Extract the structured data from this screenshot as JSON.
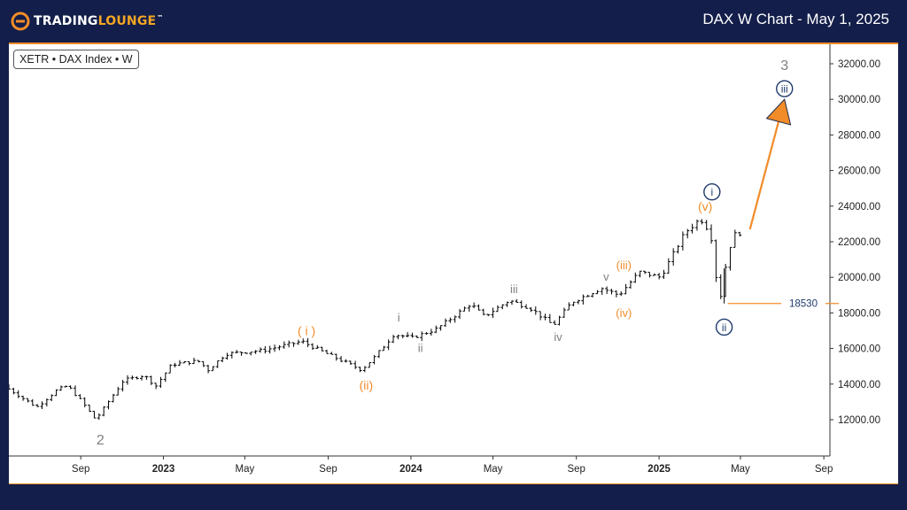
{
  "header": {
    "brand_a": "TRADING",
    "brand_b": "LOUNGE",
    "brand_tm": "™",
    "chart_title": "DAX W Chart - May 1, 2025"
  },
  "symbol": "XETR • DAX Index • W",
  "colors": {
    "background": "#131e4a",
    "accent": "#f28c28",
    "wave_blue": "#1f3a6e",
    "wave_gray": "#808080",
    "bar": "#000000"
  },
  "chart_data": {
    "type": "ohlc",
    "title": "DAX W Chart - May 1, 2025",
    "xlabel": "",
    "ylabel": "",
    "ylim": [
      10000,
      33000
    ],
    "y_ticks": [
      12000,
      14000,
      16000,
      18000,
      20000,
      22000,
      24000,
      26000,
      28000,
      30000,
      32000
    ],
    "y_tick_labels": [
      "12000.00",
      "14000.00",
      "16000.00",
      "18000.00",
      "20000.00",
      "22000.00",
      "24000.00",
      "26000.00",
      "28000.00",
      "30000.00",
      "32000.00"
    ],
    "x_ticks": [
      {
        "label": "Sep",
        "date": "2022-09-01",
        "bold": false
      },
      {
        "label": "2023",
        "date": "2023-01-01",
        "bold": true
      },
      {
        "label": "May",
        "date": "2023-05-01",
        "bold": false
      },
      {
        "label": "Sep",
        "date": "2023-09-01",
        "bold": false
      },
      {
        "label": "2024",
        "date": "2024-01-01",
        "bold": true
      },
      {
        "label": "May",
        "date": "2024-05-01",
        "bold": false
      },
      {
        "label": "Sep",
        "date": "2024-09-01",
        "bold": false
      },
      {
        "label": "2025",
        "date": "2025-01-01",
        "bold": true
      },
      {
        "label": "May",
        "date": "2025-05-01",
        "bold": false
      },
      {
        "label": "Sep",
        "date": "2025-09-01",
        "bold": false
      }
    ],
    "x_range": [
      "2022-05-18",
      "2025-09-10"
    ],
    "price_path": [
      [
        "2022-05-18",
        13900
      ],
      [
        "2022-06-15",
        13200
      ],
      [
        "2022-07-05",
        12700
      ],
      [
        "2022-08-05",
        13700
      ],
      [
        "2022-08-20",
        13900
      ],
      [
        "2022-09-10",
        13000
      ],
      [
        "2022-09-30",
        12000
      ],
      [
        "2022-10-15",
        12800
      ],
      [
        "2022-11-10",
        14200
      ],
      [
        "2022-12-10",
        14500
      ],
      [
        "2022-12-28",
        13900
      ],
      [
        "2023-01-20",
        15100
      ],
      [
        "2023-02-28",
        15300
      ],
      [
        "2023-03-15",
        14800
      ],
      [
        "2023-04-10",
        15700
      ],
      [
        "2023-06-05",
        15900
      ],
      [
        "2023-07-31",
        16400
      ],
      [
        "2023-09-01",
        15800
      ],
      [
        "2023-10-27",
        14800
      ],
      [
        "2023-11-15",
        15500
      ],
      [
        "2023-12-14",
        16800
      ],
      [
        "2024-01-10",
        16600
      ],
      [
        "2024-02-15",
        17100
      ],
      [
        "2024-04-05",
        18500
      ],
      [
        "2024-04-25",
        17800
      ],
      [
        "2024-06-01",
        18700
      ],
      [
        "2024-07-01",
        18300
      ],
      [
        "2024-08-05",
        17300
      ],
      [
        "2024-09-01",
        18600
      ],
      [
        "2024-10-15",
        19400
      ],
      [
        "2024-11-10",
        19000
      ],
      [
        "2024-12-10",
        20300
      ],
      [
        "2025-01-10",
        20000
      ],
      [
        "2025-02-15",
        22500
      ],
      [
        "2025-03-10",
        23300
      ],
      [
        "2025-03-25",
        22500
      ],
      [
        "2025-04-07",
        18530
      ],
      [
        "2025-04-20",
        21500
      ],
      [
        "2025-05-01",
        22500
      ]
    ],
    "support_level": {
      "value": 18530,
      "label": "18530",
      "from": "2025-04-07"
    },
    "projection_arrow": {
      "from": [
        "2025-05-15",
        22700
      ],
      "to": [
        "2025-07-05",
        30000
      ]
    },
    "wave_labels": [
      {
        "text": "2",
        "date": "2022-09-30",
        "price": 10900,
        "color": "gray",
        "style": "plain",
        "size": 16
      },
      {
        "text": "( i )",
        "date": "2023-07-31",
        "price": 17000,
        "color": "orange",
        "style": "plain",
        "size": 14
      },
      {
        "text": "(ii)",
        "date": "2023-10-27",
        "price": 13950,
        "color": "orange",
        "style": "plain",
        "size": 14
      },
      {
        "text": "i",
        "date": "2023-12-14",
        "price": 17750,
        "color": "gray",
        "style": "plain",
        "size": 13
      },
      {
        "text": "ii",
        "date": "2024-01-15",
        "price": 16050,
        "color": "gray",
        "style": "plain",
        "size": 13
      },
      {
        "text": "iii",
        "date": "2024-06-01",
        "price": 19350,
        "color": "gray",
        "style": "plain",
        "size": 13
      },
      {
        "text": "iv",
        "date": "2024-08-05",
        "price": 16650,
        "color": "gray",
        "style": "plain",
        "size": 13
      },
      {
        "text": "v",
        "date": "2024-10-15",
        "price": 20050,
        "color": "gray",
        "style": "plain",
        "size": 13
      },
      {
        "text": "(iii)",
        "date": "2024-11-10",
        "price": 20700,
        "color": "orange",
        "style": "plain",
        "size": 13
      },
      {
        "text": "(iv)",
        "date": "2024-11-10",
        "price": 18000,
        "color": "orange",
        "style": "plain",
        "size": 13
      },
      {
        "text": "(v)",
        "date": "2025-03-10",
        "price": 24000,
        "color": "orange",
        "style": "plain",
        "size": 14
      },
      {
        "text": "i",
        "date": "2025-03-20",
        "price": 24800,
        "color": "blue",
        "style": "circle",
        "size": 12
      },
      {
        "text": "ii",
        "date": "2025-04-07",
        "price": 17200,
        "color": "blue",
        "style": "circle",
        "size": 12
      },
      {
        "text": "iii",
        "date": "2025-07-05",
        "price": 30600,
        "color": "blue",
        "style": "circle",
        "size": 12
      },
      {
        "text": "3",
        "date": "2025-07-05",
        "price": 31950,
        "color": "gray",
        "style": "plain",
        "size": 16
      }
    ]
  }
}
